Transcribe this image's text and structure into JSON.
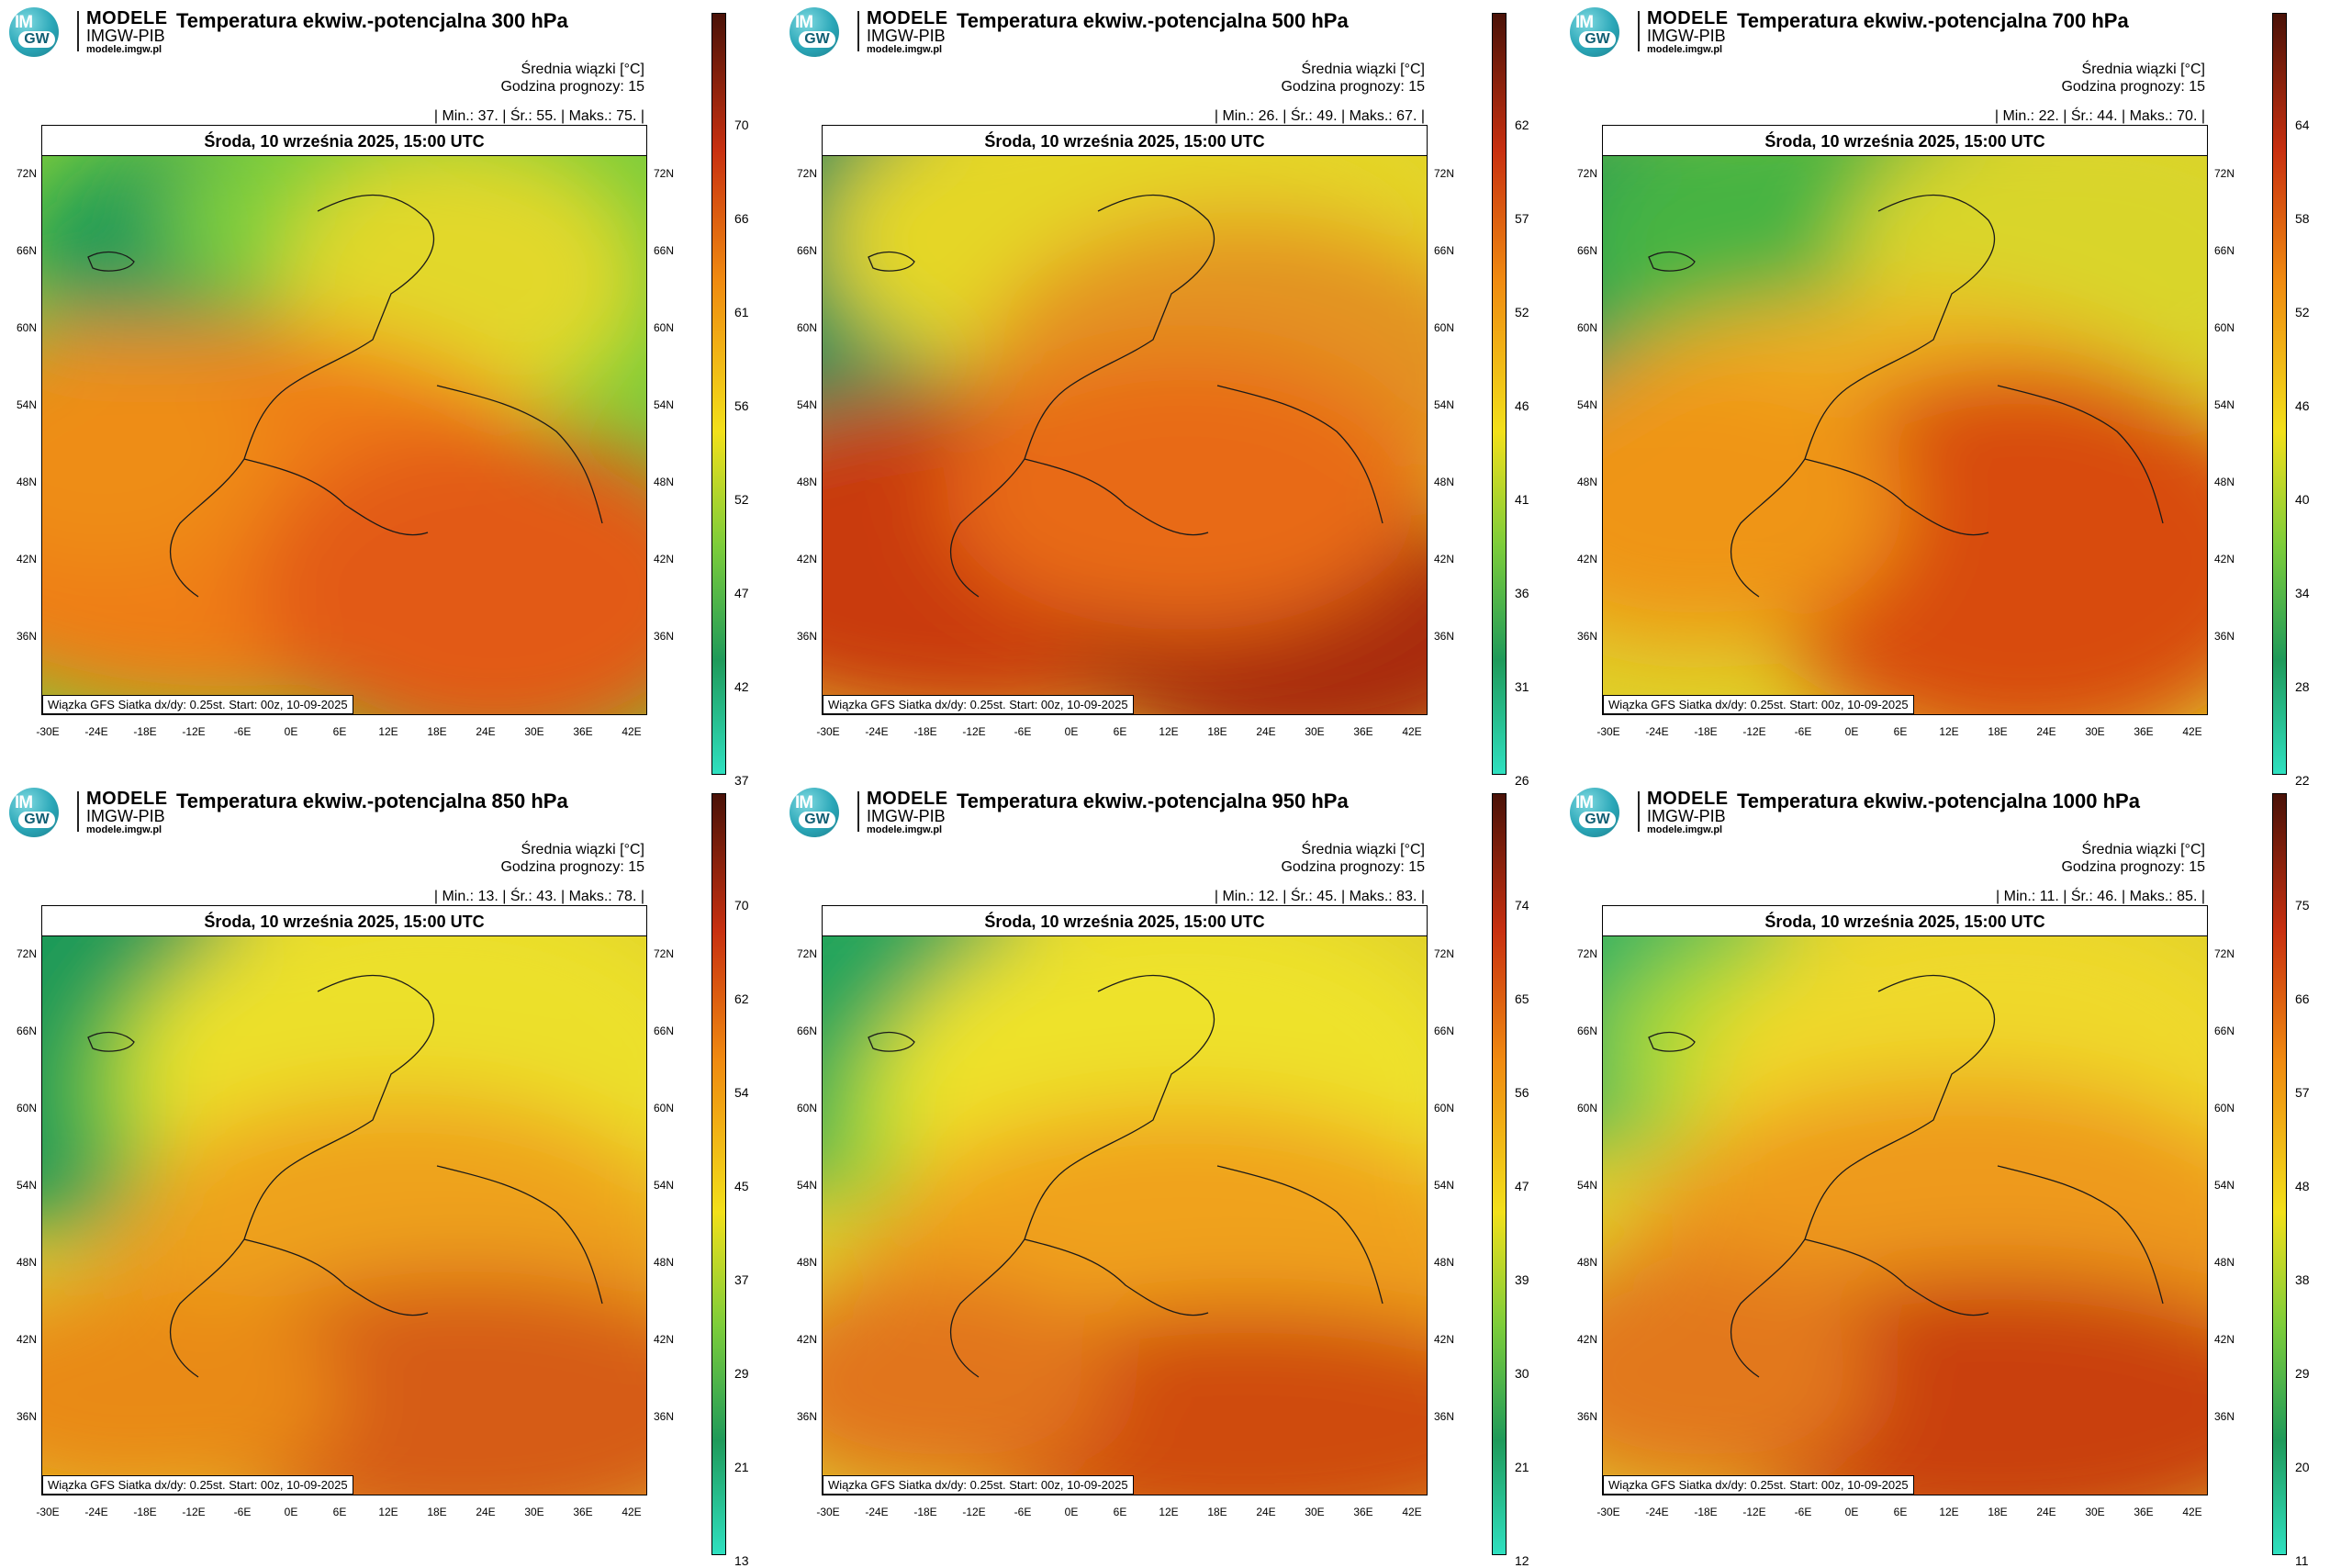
{
  "logo": {
    "brand": "MODELE",
    "sub": "IMGW-PIB",
    "url": "modele.imgw.pl",
    "im": "IM",
    "gw": "GW"
  },
  "common": {
    "subtitle_unit": "Średnia wiązki [°C]",
    "forecast_hour": "Godzina prognozy: 15",
    "date": "Środa, 10 września 2025, 15:00 UTC",
    "credit": "Wiązka GFS Siatka dx/dy: 0.25st. Start: 00z, 10-09-2025",
    "lat_labels": [
      "72N",
      "66N",
      "60N",
      "54N",
      "48N",
      "42N",
      "36N"
    ],
    "lon_labels": [
      "-30E",
      "-24E",
      "-18E",
      "-12E",
      "-6E",
      "0E",
      "6E",
      "12E",
      "18E",
      "24E",
      "30E",
      "36E",
      "42E"
    ]
  },
  "panels": [
    {
      "title": "Temperatura ekwiw.-potencjalna 300 hPa",
      "stats": "| Min.: 37. | Śr.: 55. | Maks.: 75. |",
      "ticks": [
        "70",
        "66",
        "61",
        "56",
        "52",
        "47",
        "42",
        "37"
      ]
    },
    {
      "title": "Temperatura ekwiw.-potencjalna 500 hPa",
      "stats": "| Min.: 26. | Śr.: 49. | Maks.: 67. |",
      "ticks": [
        "62",
        "57",
        "52",
        "46",
        "41",
        "36",
        "31",
        "26"
      ]
    },
    {
      "title": "Temperatura ekwiw.-potencjalna 700 hPa",
      "stats": "| Min.: 22. | Śr.: 44. | Maks.: 70. |",
      "ticks": [
        "64",
        "58",
        "52",
        "46",
        "40",
        "34",
        "28",
        "22"
      ]
    },
    {
      "title": "Temperatura ekwiw.-potencjalna 850 hPa",
      "stats": "| Min.: 13. | Śr.: 43. | Maks.: 78. |",
      "ticks": [
        "70",
        "62",
        "54",
        "45",
        "37",
        "29",
        "21",
        "13"
      ]
    },
    {
      "title": "Temperatura ekwiw.-potencjalna 950 hPa",
      "stats": "| Min.: 12. | Śr.: 45. | Maks.: 83. |",
      "ticks": [
        "74",
        "65",
        "56",
        "47",
        "39",
        "30",
        "21",
        "12"
      ]
    },
    {
      "title": "Temperatura ekwiw.-potencjalna 1000 hPa",
      "stats": "| Min.: 11. | Śr.: 46. | Maks.: 85. |",
      "ticks": [
        "75",
        "66",
        "57",
        "48",
        "38",
        "29",
        "20",
        "11"
      ]
    }
  ],
  "colors": {
    "cold": "#2fe0c0",
    "green": "#1f9a5a",
    "yellow": "#f2e01a",
    "orange": "#f08a10",
    "red": "#c83010",
    "dark": "#4a1208"
  }
}
